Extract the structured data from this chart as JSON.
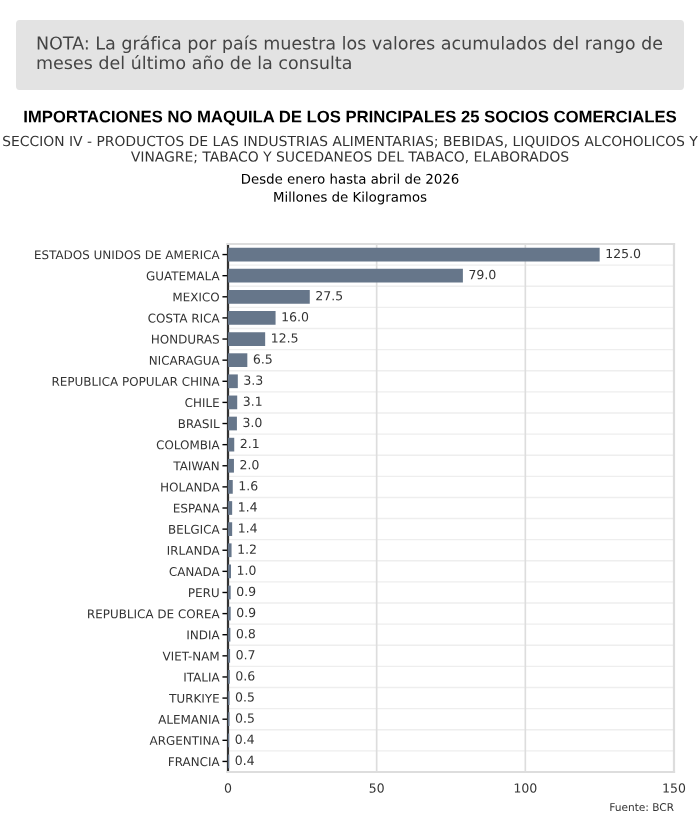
{
  "chart_data": {
    "type": "bar",
    "orientation": "horizontal",
    "title": "IMPORTACIONES NO MAQUILA DE LOS PRINCIPALES 25 SOCIOS COMERCIALES",
    "subtitle": "SECCION IV - PRODUCTOS DE LAS INDUSTRIAS ALIMENTARIAS; BEBIDAS, LIQUIDOS ALCOHOLICOS Y VINAGRE; TABACO Y SUCEDANEOS DEL TABACO, ELABORADOS",
    "annotations": [
      "NOTA: La gráfica por país muestra los valores acumulados del rango de meses del último año de la consulta",
      "Desde enero hasta abril de 2026",
      "Millones de Kilogramos",
      "Fuente: BCR"
    ],
    "categories": [
      "ESTADOS UNIDOS DE AMERICA",
      "GUATEMALA",
      "MEXICO",
      "COSTA RICA",
      "HONDURAS",
      "NICARAGUA",
      "REPUBLICA POPULAR CHINA",
      "CHILE",
      "BRASIL",
      "COLOMBIA",
      "TAIWAN",
      "HOLANDA",
      "ESPANA",
      "BELGICA",
      "IRLANDA",
      "CANADA",
      "PERU",
      "REPUBLICA DE COREA",
      "INDIA",
      "VIET-NAM",
      "ITALIA",
      "TURKIYE",
      "ALEMANIA",
      "ARGENTINA",
      "FRANCIA"
    ],
    "values": [
      125.0,
      79.0,
      27.5,
      16.0,
      12.5,
      6.5,
      3.3,
      3.1,
      3.0,
      2.1,
      2.0,
      1.6,
      1.4,
      1.4,
      1.2,
      1.0,
      0.9,
      0.9,
      0.8,
      0.7,
      0.6,
      0.5,
      0.5,
      0.4,
      0.4
    ],
    "value_labels": [
      "125.0",
      "79.0",
      "27.5",
      "16.0",
      "12.5",
      "6.5",
      "3.3",
      "3.1",
      "3.0",
      "2.1",
      "2.0",
      "1.6",
      "1.4",
      "1.4",
      "1.2",
      "1.0",
      "0.9",
      "0.9",
      "0.8",
      "0.7",
      "0.6",
      "0.5",
      "0.5",
      "0.4",
      "0.4"
    ],
    "color": "#66768a",
    "xlim": [
      0,
      150
    ],
    "xticks": [
      0,
      50,
      100,
      150
    ],
    "grid": true
  }
}
